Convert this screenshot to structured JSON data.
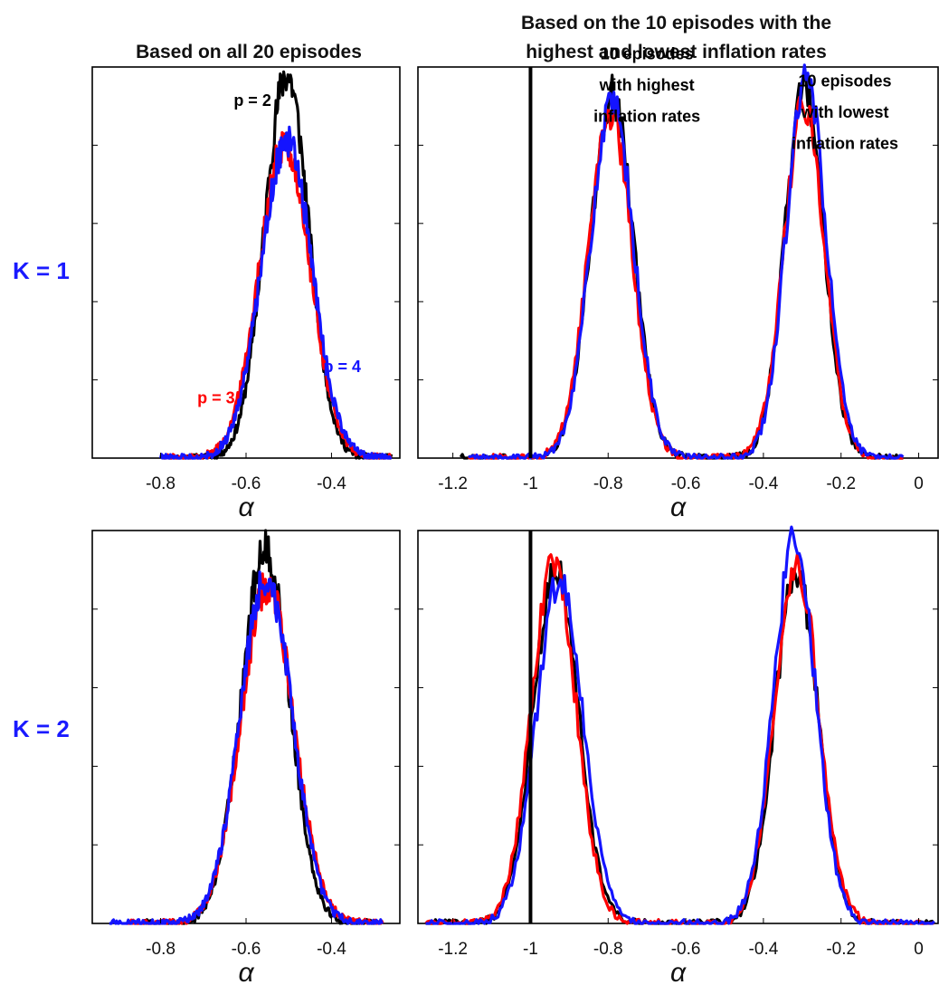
{
  "column_titles": {
    "left": "Based on all 20 episodes",
    "right_line1": "Based on the 10 episodes with the",
    "right_line2": "highest and lowest inflation rates"
  },
  "row_labels": {
    "top": "K = 1",
    "bottom": "K = 2"
  },
  "colors": {
    "p2": "#000000",
    "p3": "#ff0000",
    "p4": "#1414ff",
    "row_label": "#1a1aff"
  },
  "chart_data": [
    {
      "id": "k1-all",
      "type": "line",
      "xlabel": "α",
      "xlim": [
        -0.96,
        -0.24
      ],
      "ylim": [
        0,
        1
      ],
      "xticks": [
        -0.8,
        -0.6,
        -0.4
      ],
      "xticklabels": [
        "-0.8",
        "-0.6",
        "-0.4"
      ],
      "yticks": [
        0.2,
        0.4,
        0.6,
        0.8
      ],
      "vline": null,
      "annotations": [
        {
          "text": "p = 2",
          "x": -0.585,
          "y": 0.9,
          "color": "#000000"
        },
        {
          "text": "p = 3",
          "x": -0.67,
          "y": 0.14,
          "color": "#ff0000"
        },
        {
          "text": "p = 4",
          "x": -0.375,
          "y": 0.22,
          "color": "#1414ff"
        }
      ],
      "series": [
        {
          "name": "p = 2",
          "color": "#000000",
          "peaks": [
            {
              "mu": -0.505,
              "sigma": 0.052,
              "h": 0.98
            }
          ],
          "support": [
            -0.78,
            -0.26
          ]
        },
        {
          "name": "p = 3",
          "color": "#ff0000",
          "peaks": [
            {
              "mu": -0.51,
              "sigma": 0.06,
              "h": 0.8
            }
          ],
          "support": [
            -0.8,
            -0.26
          ]
        },
        {
          "name": "p = 4",
          "color": "#1414ff",
          "peaks": [
            {
              "mu": -0.505,
              "sigma": 0.06,
              "h": 0.81
            }
          ],
          "support": [
            -0.8,
            -0.26
          ]
        }
      ]
    },
    {
      "id": "k1-split",
      "type": "line",
      "xlabel": "α",
      "xlim": [
        -1.29,
        0.05
      ],
      "ylim": [
        0,
        1
      ],
      "xticks": [
        -1.2,
        -1.0,
        -0.8,
        -0.6,
        -0.4,
        -0.2,
        0
      ],
      "xticklabels": [
        "-1.2",
        "-1",
        "-0.8",
        "-0.6",
        "-0.4",
        "-0.2",
        "0"
      ],
      "yticks": [
        0.2,
        0.4,
        0.6,
        0.8
      ],
      "vline": -1.0,
      "annotations": [
        {
          "text": "10 episodes",
          "x": -0.7,
          "y": 1.02,
          "color": "#000000"
        },
        {
          "text": "with highest",
          "x": -0.7,
          "y": 0.94,
          "color": "#000000"
        },
        {
          "text": "inflation rates",
          "x": -0.7,
          "y": 0.86,
          "color": "#000000"
        },
        {
          "text": "10 episodes",
          "x": -0.19,
          "y": 0.95,
          "color": "#000000"
        },
        {
          "text": "with lowest",
          "x": -0.19,
          "y": 0.87,
          "color": "#000000"
        },
        {
          "text": "inflation rates",
          "x": -0.19,
          "y": 0.79,
          "color": "#000000"
        }
      ],
      "series": [
        {
          "name": "p = 2",
          "color": "#000000",
          "peaks": [
            {
              "mu": -0.79,
              "sigma": 0.055,
              "h": 0.93
            },
            {
              "mu": -0.295,
              "sigma": 0.05,
              "h": 0.95
            }
          ],
          "support": [
            -1.18,
            -0.04
          ]
        },
        {
          "name": "p = 3",
          "color": "#ff0000",
          "peaks": [
            {
              "mu": -0.795,
              "sigma": 0.056,
              "h": 0.89
            },
            {
              "mu": -0.295,
              "sigma": 0.052,
              "h": 0.9
            }
          ],
          "support": [
            -1.16,
            -0.04
          ]
        },
        {
          "name": "p = 4",
          "color": "#1414ff",
          "peaks": [
            {
              "mu": -0.79,
              "sigma": 0.056,
              "h": 0.9
            },
            {
              "mu": -0.29,
              "sigma": 0.051,
              "h": 0.97
            }
          ],
          "support": [
            -1.16,
            -0.04
          ]
        }
      ]
    },
    {
      "id": "k2-all",
      "type": "line",
      "xlabel": "α",
      "xlim": [
        -0.96,
        -0.24
      ],
      "ylim": [
        0,
        1
      ],
      "xticks": [
        -0.8,
        -0.6,
        -0.4
      ],
      "xticklabels": [
        "-0.8",
        "-0.6",
        "-0.4"
      ],
      "yticks": [
        0.2,
        0.4,
        0.6,
        0.8
      ],
      "vline": null,
      "annotations": [],
      "series": [
        {
          "name": "p = 2",
          "color": "#000000",
          "peaks": [
            {
              "mu": -0.555,
              "sigma": 0.057,
              "h": 0.95
            }
          ],
          "support": [
            -0.86,
            -0.3
          ]
        },
        {
          "name": "p = 3",
          "color": "#ff0000",
          "peaks": [
            {
              "mu": -0.55,
              "sigma": 0.062,
              "h": 0.86
            }
          ],
          "support": [
            -0.88,
            -0.28
          ]
        },
        {
          "name": "p = 4",
          "color": "#1414ff",
          "peaks": [
            {
              "mu": -0.553,
              "sigma": 0.061,
              "h": 0.88
            }
          ],
          "support": [
            -0.92,
            -0.28
          ]
        }
      ]
    },
    {
      "id": "k2-split",
      "type": "line",
      "xlabel": "α",
      "xlim": [
        -1.29,
        0.05
      ],
      "ylim": [
        0,
        1
      ],
      "xticks": [
        -1.2,
        -1.0,
        -0.8,
        -0.6,
        -0.4,
        -0.2,
        0
      ],
      "xticklabels": [
        "-1.2",
        "-1",
        "-0.8",
        "-0.6",
        "-0.4",
        "-0.2",
        "0"
      ],
      "yticks": [
        0.2,
        0.4,
        0.6,
        0.8
      ],
      "vline": -1.0,
      "annotations": [],
      "series": [
        {
          "name": "p = 2",
          "color": "#000000",
          "peaks": [
            {
              "mu": -0.935,
              "sigma": 0.058,
              "h": 0.9
            },
            {
              "mu": -0.315,
              "sigma": 0.055,
              "h": 0.9
            }
          ],
          "support": [
            -1.27,
            0.04
          ]
        },
        {
          "name": "p = 3",
          "color": "#ff0000",
          "peaks": [
            {
              "mu": -0.94,
              "sigma": 0.058,
              "h": 0.91
            },
            {
              "mu": -0.315,
              "sigma": 0.057,
              "h": 0.92
            }
          ],
          "support": [
            -1.27,
            0.04
          ]
        },
        {
          "name": "p = 4",
          "color": "#1414ff",
          "peaks": [
            {
              "mu": -0.925,
              "sigma": 0.06,
              "h": 0.87
            },
            {
              "mu": -0.32,
              "sigma": 0.055,
              "h": 0.97
            }
          ],
          "support": [
            -1.27,
            0.04
          ]
        }
      ]
    }
  ]
}
